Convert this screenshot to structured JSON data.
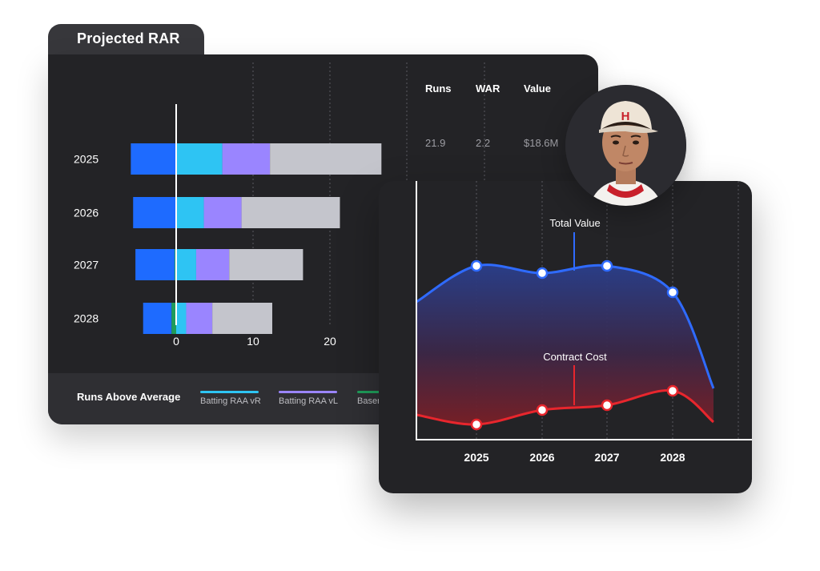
{
  "panel_title": "Projected RAR",
  "table": {
    "headers": [
      "Runs",
      "WAR",
      "Value"
    ],
    "row": [
      "21.9",
      "2.2",
      "$18.6M"
    ]
  },
  "legend": {
    "title": "Runs Above Average",
    "items": [
      {
        "label": "Batting RAA vR",
        "color": "#2ec4f3"
      },
      {
        "label": "Batting RAA vL",
        "color": "#9a85ff"
      },
      {
        "label": "Baser",
        "color": "#1f9d5a"
      }
    ]
  },
  "chart_data": [
    {
      "type": "bar",
      "stacked": true,
      "orientation": "horizontal",
      "title": "Projected RAR",
      "categories": [
        "2025",
        "2026",
        "2027",
        "2028"
      ],
      "xticks": [
        0,
        10,
        20
      ],
      "xlim": [
        -6,
        27
      ],
      "grid": true,
      "series": [
        {
          "color": "#1e6bff",
          "values": [
            [
              -5.9,
              0
            ],
            [
              -5.6,
              0
            ],
            [
              -5.3,
              0
            ],
            [
              -4.3,
              -0.6
            ]
          ]
        },
        {
          "color": "#1f9d5a",
          "values": [
            [
              0,
              0
            ],
            [
              0,
              0
            ],
            [
              -0.2,
              0
            ],
            [
              -0.6,
              0
            ]
          ]
        },
        {
          "name": "Batting RAA vR",
          "color": "#2ec4f3",
          "values": [
            [
              0,
              6.0
            ],
            [
              0,
              3.6
            ],
            [
              0,
              2.6
            ],
            [
              0,
              1.3
            ]
          ]
        },
        {
          "name": "Batting RAA vL",
          "color": "#9a85ff",
          "values": [
            [
              6.0,
              12.2
            ],
            [
              3.6,
              8.5
            ],
            [
              2.6,
              6.9
            ],
            [
              1.3,
              4.7
            ]
          ]
        },
        {
          "color": "#c4c5cc",
          "values": [
            [
              12.2,
              26.7
            ],
            [
              8.5,
              21.3
            ],
            [
              6.9,
              16.5
            ],
            [
              4.7,
              12.5
            ]
          ]
        }
      ]
    },
    {
      "type": "area",
      "categories": [
        "2025",
        "2026",
        "2027",
        "2028"
      ],
      "series": [
        {
          "name": "Total Value",
          "color": "#2f6bff",
          "values": [
            72,
            69,
            72,
            61
          ]
        },
        {
          "name": "Contract Cost",
          "color": "#e8262d",
          "values": [
            6,
            12,
            14,
            20
          ]
        }
      ],
      "ylim": [
        0,
        100
      ],
      "grid": true,
      "annotations": [
        "Total Value",
        "Contract Cost"
      ]
    }
  ]
}
